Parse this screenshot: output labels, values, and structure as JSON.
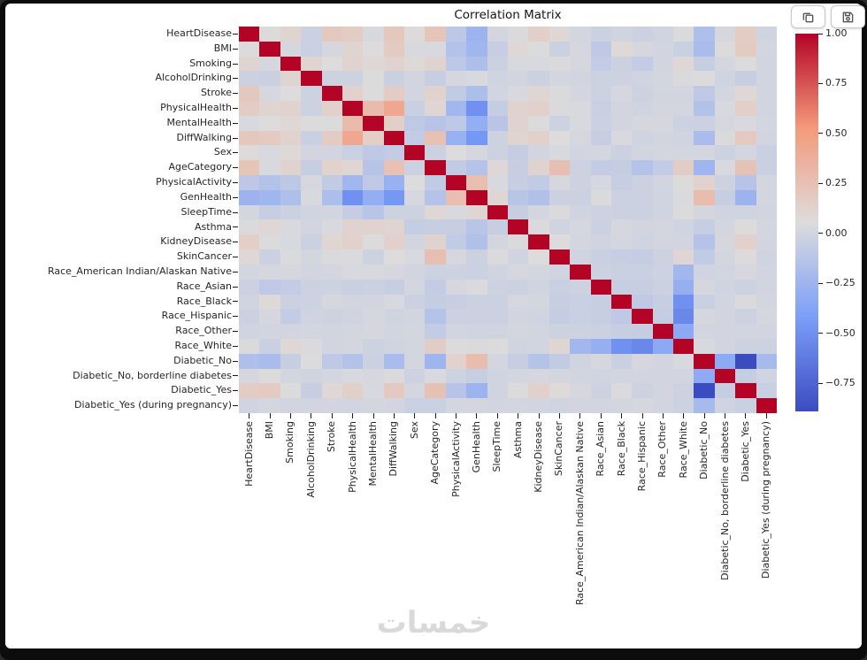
{
  "chart_data": {
    "type": "heatmap",
    "title": "Correlation Matrix",
    "colormap": "coolwarm",
    "colormap_stops": [
      "#3b4cc0",
      "#7b9ff9",
      "#dddcdc",
      "#f49a7b",
      "#b40426"
    ],
    "vmin": -0.89,
    "vmax": 1.0,
    "colorbar_tick_values": [
      1.0,
      0.75,
      0.5,
      0.25,
      0.0,
      -0.25,
      -0.5,
      -0.75
    ],
    "colorbar_tick_labels": [
      "1.00",
      "0.75",
      "0.50",
      "0.25",
      "0.00",
      "−0.25",
      "−0.50",
      "−0.75"
    ],
    "labels": [
      "HeartDisease",
      "BMI",
      "Smoking",
      "AlcoholDrinking",
      "Stroke",
      "PhysicalHealth",
      "MentalHealth",
      "DiffWalking",
      "Sex",
      "AgeCategory",
      "PhysicalActivity",
      "GenHealth",
      "SleepTime",
      "Asthma",
      "KidneyDisease",
      "SkinCancer",
      "Race_American Indian/Alaskan Native",
      "Race_Asian",
      "Race_Black",
      "Race_Hispanic",
      "Race_Other",
      "Race_White",
      "Diabetic_No",
      "Diabetic_No, borderline diabetes",
      "Diabetic_Yes",
      "Diabetic_Yes (during pregnancy)"
    ],
    "matrix_lower": [
      [
        1.0
      ],
      [
        0.05,
        1.0
      ],
      [
        0.11,
        0.02,
        1.0
      ],
      [
        -0.03,
        -0.04,
        0.11,
        1.0
      ],
      [
        0.2,
        0.02,
        0.06,
        -0.02,
        1.0
      ],
      [
        0.17,
        0.11,
        0.12,
        -0.02,
        0.14,
        1.0
      ],
      [
        0.03,
        0.06,
        0.09,
        0.05,
        0.05,
        0.29,
        1.0
      ],
      [
        0.2,
        0.18,
        0.12,
        -0.04,
        0.17,
        0.43,
        0.15,
        1.0
      ],
      [
        0.07,
        0.03,
        0.08,
        0.0,
        0.0,
        -0.04,
        -0.09,
        -0.07,
        1.0
      ],
      [
        0.23,
        0.03,
        0.12,
        -0.05,
        0.13,
        0.1,
        -0.13,
        0.25,
        -0.03,
        1.0
      ],
      [
        -0.1,
        -0.15,
        -0.1,
        0.02,
        -0.08,
        -0.23,
        -0.09,
        -0.28,
        0.06,
        -0.08,
        1.0
      ],
      [
        -0.26,
        -0.24,
        -0.17,
        0.03,
        -0.18,
        -0.5,
        -0.3,
        -0.46,
        0.02,
        -0.14,
        0.27,
        1.0
      ],
      [
        0.01,
        -0.05,
        -0.03,
        -0.01,
        0.0,
        -0.06,
        -0.12,
        -0.02,
        -0.02,
        0.09,
        0.03,
        0.1,
        1.0
      ],
      [
        0.04,
        0.09,
        0.03,
        0.0,
        0.03,
        0.12,
        0.12,
        0.11,
        -0.06,
        -0.05,
        -0.05,
        -0.12,
        -0.05,
        1.0
      ],
      [
        0.15,
        0.05,
        0.03,
        -0.03,
        0.1,
        0.14,
        0.05,
        0.14,
        0.0,
        0.12,
        -0.08,
        -0.16,
        0.01,
        0.04,
        1.0
      ],
      [
        0.09,
        -0.03,
        0.04,
        0.01,
        0.04,
        0.04,
        -0.02,
        0.06,
        0.03,
        0.26,
        0.02,
        -0.03,
        0.04,
        -0.01,
        0.06,
        1.0
      ],
      [
        0.01,
        0.02,
        0.02,
        0.0,
        0.01,
        0.03,
        0.03,
        0.02,
        0.0,
        -0.02,
        -0.02,
        -0.03,
        -0.01,
        0.02,
        0.01,
        -0.01,
        1.0
      ],
      [
        -0.03,
        -0.09,
        -0.07,
        -0.02,
        -0.02,
        -0.04,
        -0.03,
        -0.05,
        0.01,
        -0.07,
        0.02,
        0.04,
        -0.02,
        -0.03,
        -0.01,
        -0.04,
        -0.02,
        1.0
      ],
      [
        -0.01,
        0.08,
        -0.03,
        -0.02,
        0.02,
        0.0,
        0.0,
        0.03,
        -0.03,
        -0.06,
        -0.05,
        -0.03,
        -0.03,
        0.02,
        0.01,
        -0.05,
        -0.04,
        -0.05,
        1.0
      ],
      [
        -0.03,
        0.02,
        -0.07,
        -0.01,
        -0.02,
        -0.01,
        0.02,
        -0.01,
        0.0,
        -0.14,
        -0.03,
        -0.03,
        -0.03,
        0.0,
        -0.01,
        -0.06,
        -0.04,
        -0.05,
        -0.09,
        1.0
      ],
      [
        -0.01,
        0.0,
        0.0,
        0.01,
        0.0,
        0.01,
        0.02,
        0.0,
        0.01,
        -0.07,
        0.0,
        -0.01,
        -0.01,
        0.01,
        0.0,
        -0.02,
        -0.02,
        -0.03,
        -0.05,
        -0.06,
        1.0
      ],
      [
        0.04,
        -0.04,
        0.09,
        0.04,
        0.0,
        0.01,
        -0.02,
        -0.01,
        0.01,
        0.16,
        0.05,
        0.04,
        0.05,
        -0.01,
        0.0,
        0.1,
        -0.23,
        -0.29,
        -0.5,
        -0.55,
        -0.34,
        1.0
      ],
      [
        -0.17,
        -0.19,
        -0.05,
        0.05,
        -0.09,
        -0.15,
        -0.03,
        -0.19,
        0.01,
        -0.25,
        0.13,
        0.28,
        0.01,
        -0.05,
        -0.14,
        -0.08,
        -0.01,
        0.02,
        -0.04,
        0.02,
        0.0,
        0.03,
        1.0
      ],
      [
        0.02,
        0.05,
        0.01,
        -0.01,
        0.01,
        0.03,
        0.02,
        0.04,
        -0.02,
        0.03,
        -0.02,
        -0.05,
        -0.01,
        0.01,
        0.02,
        0.01,
        0.0,
        -0.01,
        0.0,
        0.0,
        0.0,
        0.0,
        -0.33,
        1.0
      ],
      [
        0.17,
        0.18,
        0.05,
        -0.05,
        0.09,
        0.15,
        0.03,
        0.19,
        0.01,
        0.24,
        -0.13,
        -0.26,
        -0.01,
        0.05,
        0.14,
        0.07,
        0.02,
        -0.02,
        0.04,
        -0.02,
        0.0,
        -0.02,
        -0.89,
        -0.06,
        1.0
      ],
      [
        -0.01,
        0.01,
        0.0,
        0.0,
        0.0,
        0.0,
        0.01,
        0.0,
        -0.04,
        -0.04,
        0.01,
        0.01,
        0.0,
        0.01,
        0.0,
        -0.01,
        0.0,
        0.0,
        0.01,
        0.02,
        0.0,
        -0.02,
        -0.21,
        -0.01,
        -0.04,
        1.0
      ]
    ]
  },
  "toolbar": {
    "buttons": [
      {
        "name": "copy",
        "icon": "copy-icon"
      },
      {
        "name": "save",
        "icon": "save-icon"
      }
    ]
  },
  "watermark": {
    "text": "خمسات"
  }
}
